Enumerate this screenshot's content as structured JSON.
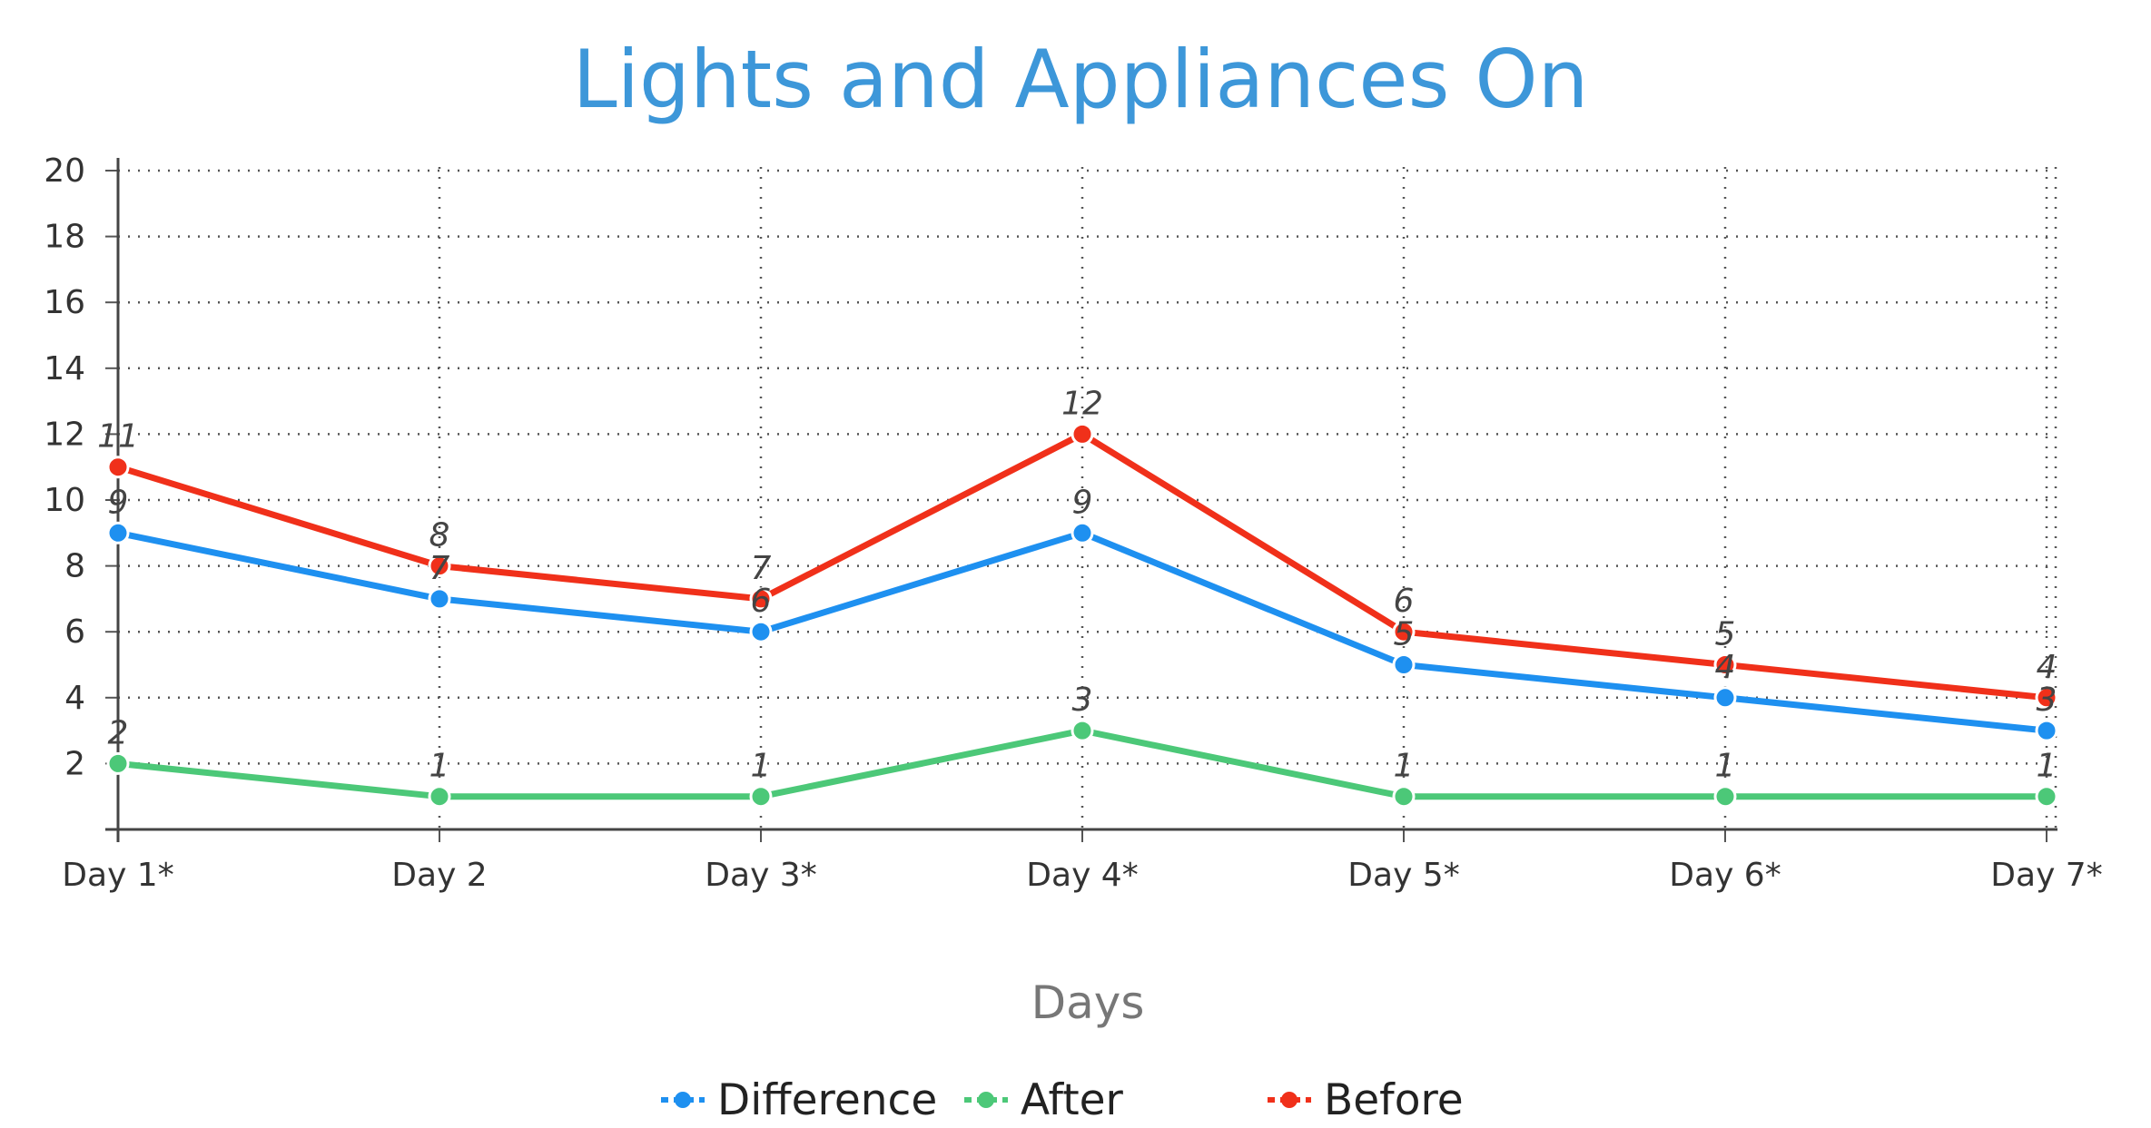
{
  "chart_data": {
    "type": "line",
    "title": "Lights and Appliances On",
    "xlabel": "Days",
    "ylabel": "",
    "categories": [
      "Day 1*",
      "Day 2",
      "Day 3*",
      "Day 4*",
      "Day 5*",
      "Day 6*",
      "Day 7*"
    ],
    "ylim": [
      0,
      20
    ],
    "yticks": [
      2,
      4,
      6,
      8,
      10,
      12,
      14,
      16,
      18,
      20
    ],
    "grid": true,
    "legend_position": "bottom",
    "series": [
      {
        "name": "Difference",
        "color": "#1e90f0",
        "values": [
          9,
          7,
          6,
          9,
          5,
          4,
          3
        ]
      },
      {
        "name": "After",
        "color": "#4cc878",
        "values": [
          2,
          1,
          1,
          3,
          1,
          1,
          1
        ]
      },
      {
        "name": "Before",
        "color": "#f0301a",
        "values": [
          11,
          8,
          7,
          12,
          6,
          5,
          4
        ]
      }
    ]
  }
}
